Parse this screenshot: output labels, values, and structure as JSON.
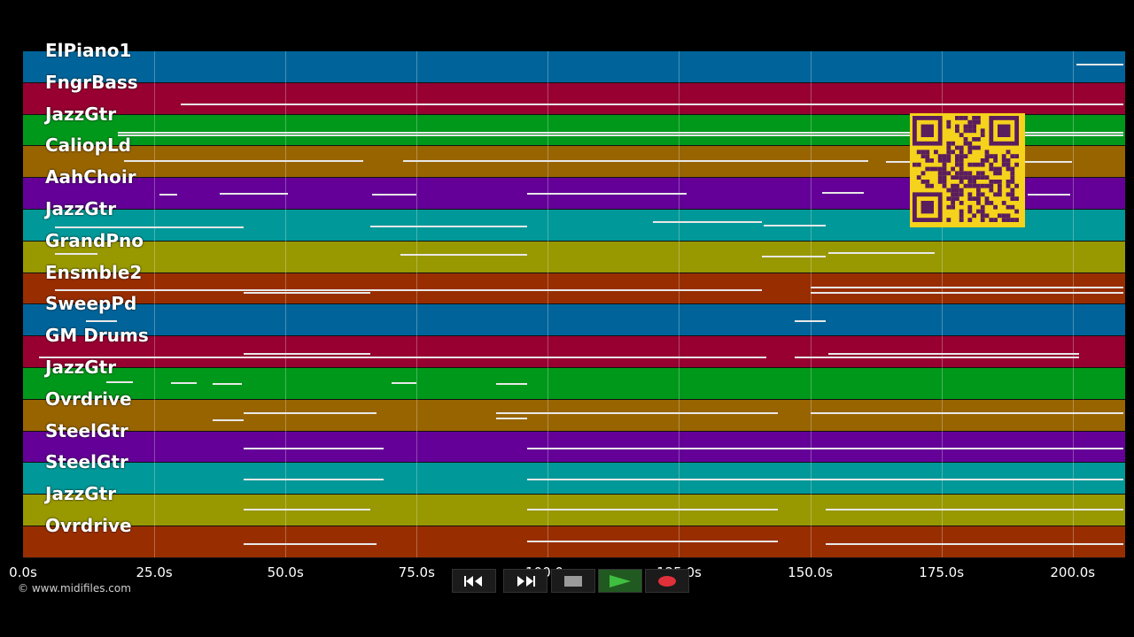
{
  "tracks": [
    {
      "name": "ElPiano1",
      "color": "#00649a"
    },
    {
      "name": "FngrBass",
      "color": "#970031"
    },
    {
      "name": "JazzGtr",
      "color": "#00981a"
    },
    {
      "name": "CaliopLd",
      "color": "#986400"
    },
    {
      "name": "AahChoir",
      "color": "#640098"
    },
    {
      "name": "JazzGtr",
      "color": "#009898"
    },
    {
      "name": "GrandPno",
      "color": "#989800"
    },
    {
      "name": "Ensmble2",
      "color": "#982e00"
    },
    {
      "name": "SweepPd",
      "color": "#00649a"
    },
    {
      "name": "GM Drums",
      "color": "#970031"
    },
    {
      "name": "JazzGtr",
      "color": "#00981a"
    },
    {
      "name": "Ovrdrive",
      "color": "#986400"
    },
    {
      "name": "SteelGtr",
      "color": "#640098"
    },
    {
      "name": "SteelGtr",
      "color": "#009898"
    },
    {
      "name": "JazzGtr",
      "color": "#989800"
    },
    {
      "name": "Ovrdrive",
      "color": "#982e00"
    }
  ],
  "timeline": {
    "ticks": [
      "0.0s",
      "25.0s",
      "50.0s",
      "75.0s",
      "100.0s",
      "125.0s",
      "150.0s",
      "175.0s",
      "200.0s"
    ]
  },
  "copyright": "© www.midifiles.com",
  "controls": {
    "rewind_icon": "rewind-icon",
    "fast_forward_icon": "fast-forward-icon",
    "stop_icon": "stop-icon",
    "play_icon": "play-icon",
    "record_icon": "record-icon",
    "play_color": "#3fbf3f",
    "record_color": "#e0303a"
  },
  "qr_code": {
    "color": "#f5d21b",
    "dark": "#5a1d5e"
  }
}
